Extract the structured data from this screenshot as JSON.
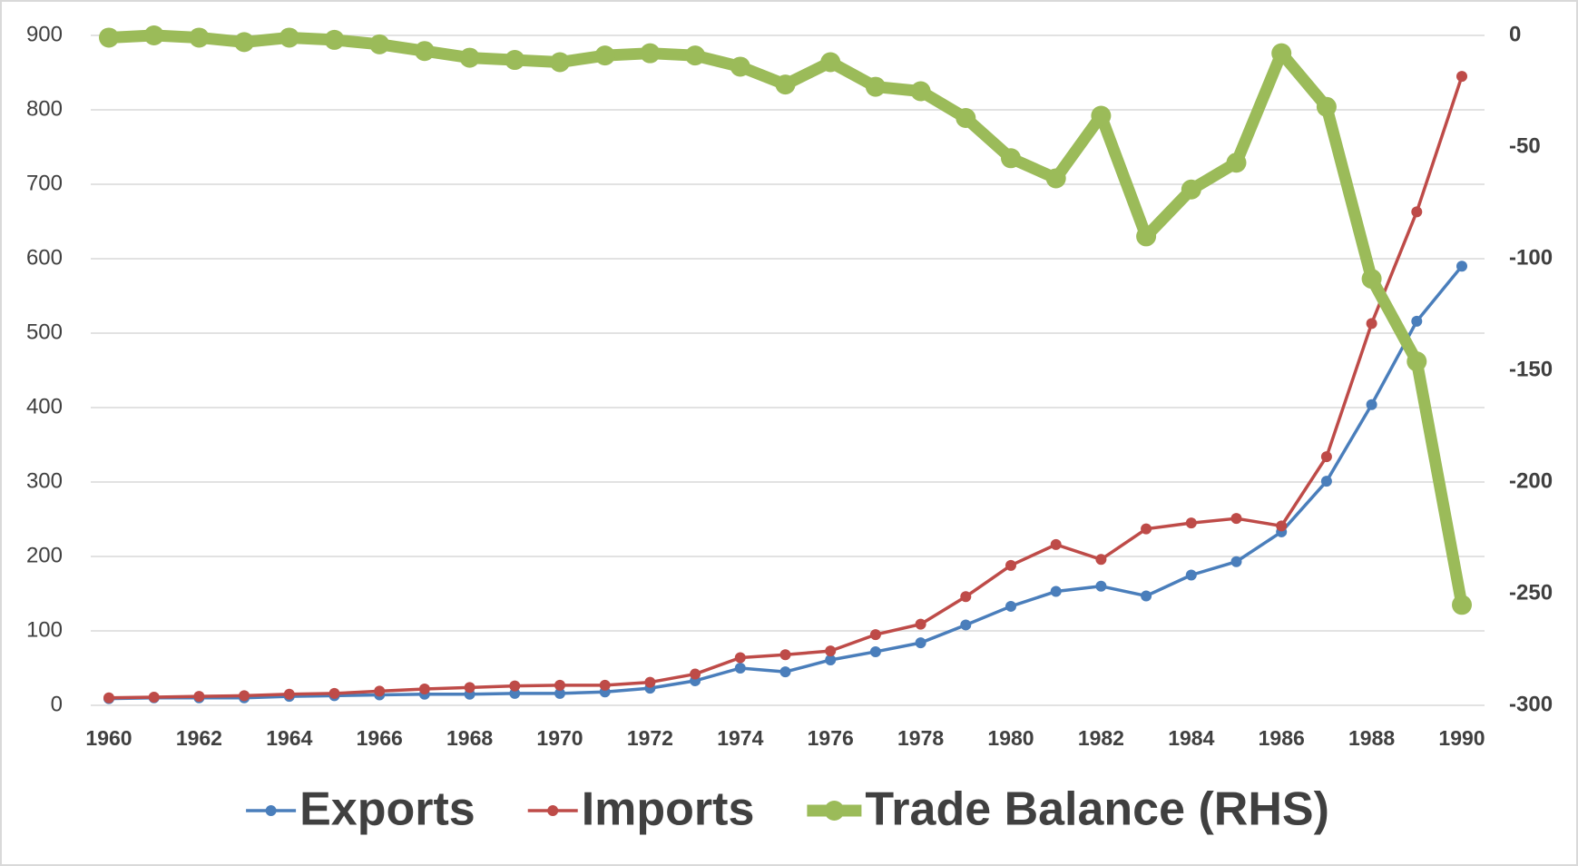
{
  "chart_data": {
    "type": "line",
    "x": [
      1960,
      1961,
      1962,
      1963,
      1964,
      1965,
      1966,
      1967,
      1968,
      1969,
      1970,
      1971,
      1972,
      1973,
      1974,
      1975,
      1976,
      1977,
      1978,
      1979,
      1980,
      1981,
      1982,
      1983,
      1984,
      1985,
      1986,
      1987,
      1988,
      1989,
      1990
    ],
    "xlim": [
      1960,
      1990
    ],
    "xticks": [
      1960,
      1962,
      1964,
      1966,
      1968,
      1970,
      1972,
      1974,
      1976,
      1978,
      1980,
      1982,
      1984,
      1986,
      1988,
      1990
    ],
    "ylim": [
      0,
      900
    ],
    "yticks": [
      0,
      100,
      200,
      300,
      400,
      500,
      600,
      700,
      800,
      900
    ],
    "y2lim": [
      -300,
      0
    ],
    "y2ticks": [
      -300,
      -250,
      -200,
      -150,
      -100,
      -50,
      0
    ],
    "grid": true,
    "legend": "bottom",
    "series": [
      {
        "name": "Exports",
        "color": "#4a7ebb",
        "values": [
          9,
          10,
          10,
          10,
          12,
          13,
          14,
          15,
          15,
          16,
          16,
          18,
          23,
          33,
          50,
          45,
          61,
          72,
          84,
          108,
          133,
          153,
          160,
          147,
          175,
          193,
          233,
          301,
          404,
          516,
          590
        ]
      },
      {
        "name": "Imports",
        "color": "#be4b48",
        "values": [
          10,
          11,
          12,
          13,
          15,
          16,
          19,
          22,
          24,
          26,
          27,
          27,
          31,
          42,
          64,
          68,
          73,
          95,
          109,
          146,
          188,
          216,
          196,
          237,
          245,
          251,
          241,
          334,
          513,
          663,
          845
        ]
      },
      {
        "name": "Trade Balance (RHS)",
        "color": "#9bbb59",
        "axis": "y2",
        "values": [
          -1,
          0,
          -1,
          -3,
          -1,
          -2,
          -4,
          -7,
          -10,
          -11,
          -12,
          -9,
          -8,
          -9,
          -14,
          -22,
          -12,
          -23,
          -25,
          -37,
          -55,
          -64,
          -36,
          -90,
          -69,
          -57,
          -8,
          -32,
          -109,
          -146,
          -255
        ]
      }
    ]
  }
}
